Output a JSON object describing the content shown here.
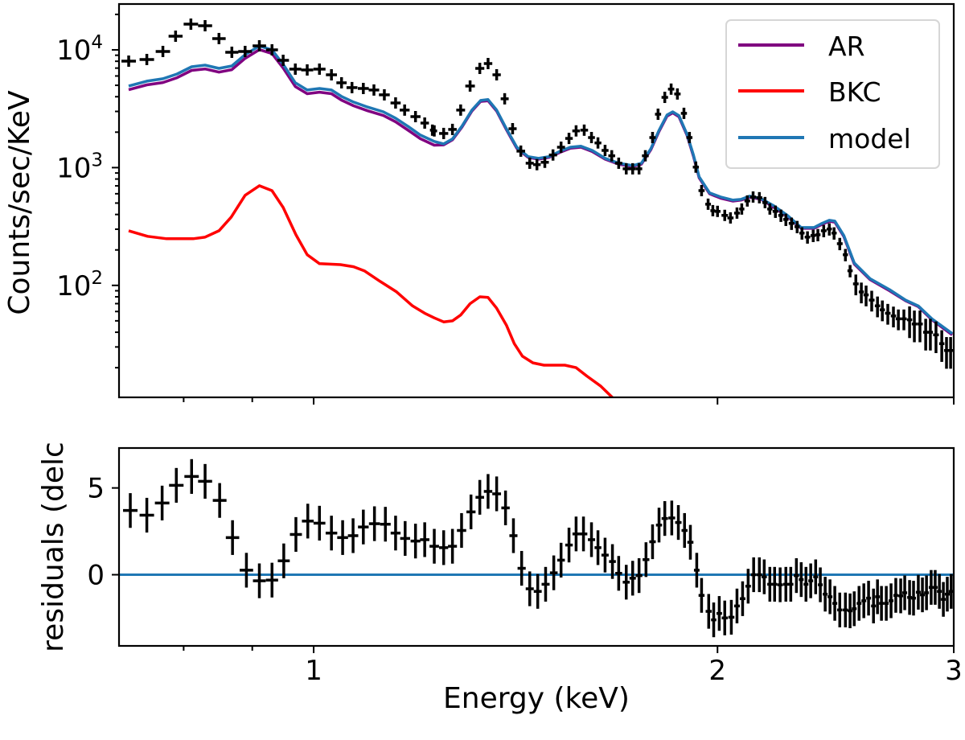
{
  "chart_data": [
    {
      "type": "line",
      "panel": "spectrum",
      "xlabel": "",
      "ylabel": "Counts/sec/KeV",
      "xscale": "log",
      "yscale": "log",
      "xlim": [
        0.716,
        3.0
      ],
      "ylim": [
        11.2,
        24500
      ],
      "yticks": [
        {
          "value": 10000,
          "base": "10",
          "exp": "4"
        },
        {
          "value": 1000,
          "base": "10",
          "exp": "3"
        },
        {
          "value": 100,
          "base": "10",
          "exp": "2"
        }
      ],
      "xticks_major": [
        1,
        2,
        3
      ],
      "xticks_minor": [
        0.8,
        0.9
      ],
      "legend": {
        "placement": "top-right",
        "entries": [
          {
            "label": "AR",
            "color": "#800080"
          },
          {
            "label": "BKC",
            "color": "#ff0000"
          },
          {
            "label": "model",
            "color": "#1f77b4"
          }
        ]
      },
      "data_points": {
        "color": "#000000",
        "x": [
          0.728,
          0.751,
          0.772,
          0.789,
          0.81,
          0.83,
          0.85,
          0.869,
          0.889,
          0.911,
          0.931,
          0.949,
          0.969,
          0.989,
          1.01,
          1.031,
          1.049,
          1.068,
          1.089,
          1.109,
          1.129,
          1.151,
          1.169,
          1.191,
          1.21,
          1.226,
          1.23,
          1.25,
          1.269,
          1.287,
          1.308,
          1.33,
          1.349,
          1.369,
          1.388,
          1.407,
          1.427,
          1.449,
          1.467,
          1.487,
          1.508,
          1.529,
          1.55,
          1.569,
          1.591,
          1.611,
          1.629,
          1.649,
          1.668,
          1.688,
          1.71,
          1.729,
          1.748,
          1.767,
          1.789,
          1.806,
          1.827,
          1.847,
          1.867,
          1.888,
          1.906,
          1.927,
          1.946,
          1.968,
          1.984,
          2.0,
          2.025,
          2.045,
          2.068,
          2.085,
          2.105,
          2.126,
          2.149,
          2.17,
          2.188,
          2.209,
          2.23,
          2.249,
          2.271,
          2.293,
          2.312,
          2.334,
          2.357,
          2.376,
          2.4,
          2.423,
          2.443,
          2.467,
          2.491,
          2.511,
          2.536,
          2.56,
          2.581,
          2.606,
          2.632,
          2.654,
          2.679,
          2.705,
          2.728,
          2.754,
          2.781,
          2.804,
          2.831,
          2.859,
          2.882,
          2.91,
          2.939,
          2.963,
          2.984
        ],
        "y": [
          8020,
          8280,
          9690,
          13060,
          16530,
          16030,
          12470,
          9540,
          9690,
          10820,
          10000,
          8150,
          6860,
          6750,
          6860,
          6140,
          5250,
          4780,
          4700,
          4560,
          4150,
          3540,
          3080,
          2710,
          2390,
          2080,
          2050,
          1950,
          2110,
          3080,
          4930,
          6960,
          7650,
          6140,
          3840,
          2140,
          1380,
          1090,
          1060,
          1110,
          1280,
          1490,
          1770,
          2050,
          2080,
          1800,
          1620,
          1400,
          1260,
          1090,
          977,
          977,
          977,
          1260,
          1800,
          2840,
          3950,
          4640,
          4220,
          2890,
          1800,
          1010,
          638,
          489,
          431,
          425,
          393,
          374,
          411,
          445,
          521,
          563,
          555,
          505,
          445,
          425,
          393,
          363,
          336,
          315,
          278,
          257,
          265,
          269,
          291,
          301,
          278,
          226,
          182,
          133,
          103,
          88,
          83,
          75,
          67,
          62,
          58,
          55,
          52,
          52,
          51,
          47,
          47,
          40,
          40,
          38,
          32,
          28,
          28
        ],
        "yerr_frac": [
          0.03,
          0.03,
          0.03,
          0.03,
          0.03,
          0.03,
          0.03,
          0.03,
          0.03,
          0.03,
          0.03,
          0.03,
          0.03,
          0.03,
          0.03,
          0.03,
          0.03,
          0.03,
          0.03,
          0.03,
          0.03,
          0.03,
          0.03,
          0.03,
          0.03,
          0.03,
          0.05,
          0.05,
          0.05,
          0.05,
          0.05,
          0.05,
          0.05,
          0.05,
          0.05,
          0.05,
          0.05,
          0.05,
          0.05,
          0.05,
          0.05,
          0.05,
          0.05,
          0.05,
          0.05,
          0.05,
          0.05,
          0.05,
          0.05,
          0.05,
          0.05,
          0.05,
          0.05,
          0.05,
          0.05,
          0.05,
          0.05,
          0.05,
          0.05,
          0.05,
          0.05,
          0.05,
          0.08,
          0.08,
          0.08,
          0.08,
          0.08,
          0.08,
          0.08,
          0.08,
          0.08,
          0.08,
          0.08,
          0.08,
          0.08,
          0.12,
          0.12,
          0.12,
          0.12,
          0.12,
          0.12,
          0.12,
          0.12,
          0.12,
          0.12,
          0.12,
          0.12,
          0.12,
          0.12,
          0.12,
          0.2,
          0.2,
          0.2,
          0.2,
          0.2,
          0.2,
          0.2,
          0.2,
          0.2,
          0.2,
          0.3,
          0.3,
          0.3,
          0.3,
          0.3,
          0.3,
          0.3,
          0.3,
          0.3
        ]
      },
      "series": [
        {
          "name": "AR",
          "color": "#800080",
          "x": [
            0.728,
            0.751,
            0.772,
            0.791,
            0.811,
            0.83,
            0.85,
            0.869,
            0.889,
            0.911,
            0.931,
            0.949,
            0.969,
            0.989,
            1.01,
            1.031,
            1.049,
            1.071,
            1.097,
            1.127,
            1.151,
            1.175,
            1.201,
            1.23,
            1.25,
            1.269,
            1.29,
            1.312,
            1.332,
            1.349,
            1.369,
            1.392,
            1.417,
            1.445,
            1.471,
            1.498,
            1.527,
            1.554,
            1.582,
            1.613,
            1.649,
            1.688,
            1.729,
            1.755,
            1.784,
            1.809,
            1.834,
            1.852,
            1.872,
            1.898,
            1.919,
            1.938,
            1.973,
            2.011,
            2.054,
            2.082,
            2.114,
            2.155,
            2.203,
            2.255,
            2.309,
            2.36,
            2.393,
            2.423,
            2.446,
            2.484,
            2.529,
            2.599,
            2.687,
            2.762,
            2.823,
            2.89,
            2.992
          ],
          "y": [
            4580,
            5040,
            5280,
            5800,
            6690,
            6890,
            6470,
            6790,
            8460,
            10040,
            9300,
            7010,
            4880,
            4240,
            4370,
            4240,
            3740,
            3350,
            3040,
            2770,
            2450,
            2090,
            1760,
            1550,
            1560,
            1720,
            2210,
            3020,
            3650,
            3700,
            3020,
            2100,
            1460,
            1220,
            1180,
            1220,
            1350,
            1460,
            1490,
            1370,
            1180,
            1070,
            1020,
            1070,
            1420,
            2030,
            2740,
            2920,
            2700,
            1880,
            1250,
            820,
            600,
            550,
            520,
            530,
            560,
            540,
            460,
            385,
            305,
            305,
            330,
            350,
            345,
            260,
            152,
            112,
            90,
            74,
            66,
            51,
            38
          ]
        },
        {
          "name": "BKC",
          "color": "#ff0000",
          "x": [
            0.728,
            0.752,
            0.777,
            0.813,
            0.83,
            0.85,
            0.868,
            0.889,
            0.911,
            0.931,
            0.949,
            0.97,
            0.989,
            1.01,
            1.047,
            1.071,
            1.091,
            1.121,
            1.153,
            1.185,
            1.21,
            1.23,
            1.25,
            1.269,
            1.287,
            1.308,
            1.33,
            1.349,
            1.369,
            1.392,
            1.411,
            1.431,
            1.457,
            1.485,
            1.539,
            1.569,
            1.598,
            1.636,
            1.672
          ],
          "y": [
            291,
            261,
            249,
            249,
            257,
            291,
            380,
            582,
            702,
            638,
            459,
            269,
            182,
            153,
            150,
            144,
            133,
            108,
            88,
            67,
            58,
            53,
            49,
            50,
            56,
            70,
            80,
            79,
            64,
            46,
            32,
            25,
            22,
            21,
            21,
            20,
            17,
            14,
            11
          ]
        },
        {
          "name": "model",
          "color": "#1f77b4",
          "x": [
            0.728,
            0.751,
            0.772,
            0.791,
            0.811,
            0.83,
            0.85,
            0.869,
            0.889,
            0.911,
            0.931,
            0.949,
            0.969,
            0.989,
            1.01,
            1.031,
            1.049,
            1.071,
            1.097,
            1.127,
            1.151,
            1.175,
            1.201,
            1.23,
            1.25,
            1.269,
            1.29,
            1.312,
            1.332,
            1.349,
            1.369,
            1.392,
            1.417,
            1.445,
            1.471,
            1.498,
            1.527,
            1.554,
            1.582,
            1.613,
            1.649,
            1.688,
            1.729,
            1.755,
            1.784,
            1.809,
            1.834,
            1.852,
            1.872,
            1.898,
            1.919,
            1.938,
            1.973,
            2.011,
            2.054,
            2.082,
            2.114,
            2.155,
            2.203,
            2.255,
            2.309,
            2.36,
            2.393,
            2.423,
            2.446,
            2.484,
            2.529,
            2.599,
            2.687,
            2.762,
            2.823,
            2.89,
            2.992
          ],
          "y": [
            4930,
            5420,
            5680,
            6240,
            7190,
            7410,
            6960,
            7300,
            9100,
            10800,
            10000,
            7540,
            5250,
            4560,
            4700,
            4560,
            4020,
            3600,
            3270,
            2980,
            2630,
            2250,
            1890,
            1670,
            1590,
            1750,
            2250,
            3080,
            3720,
            3780,
            3080,
            2140,
            1490,
            1240,
            1200,
            1240,
            1380,
            1490,
            1520,
            1400,
            1200,
            1090,
            1040,
            1090,
            1450,
            2070,
            2800,
            2980,
            2760,
            1920,
            1280,
            836,
            610,
            563,
            530,
            537,
            573,
            546,
            474,
            393,
            310,
            310,
            336,
            357,
            352,
            265,
            155,
            114,
            92,
            75,
            67,
            52,
            39
          ]
        }
      ]
    },
    {
      "type": "scatter",
      "panel": "residuals",
      "xlabel": "Energy (keV)",
      "ylabel": "residuals (delc",
      "xscale": "log",
      "xlim": [
        0.716,
        3.0
      ],
      "ylim": [
        -4.1,
        7.3
      ],
      "yticks": [
        0,
        5
      ],
      "xticks_major": [
        {
          "value": 1,
          "label": "1"
        },
        {
          "value": 2,
          "label": "2"
        },
        {
          "value": 3,
          "label": "3"
        }
      ],
      "xticks_minor": [
        0.8,
        0.9
      ],
      "zero_line_color": "#1f77b4",
      "points": {
        "color": "#000000",
        "x": [
          0.73,
          0.751,
          0.771,
          0.79,
          0.811,
          0.83,
          0.851,
          0.87,
          0.891,
          0.911,
          0.931,
          0.95,
          0.97,
          0.99,
          1.01,
          1.031,
          1.051,
          1.07,
          1.089,
          1.11,
          1.131,
          1.151,
          1.17,
          1.191,
          1.21,
          1.23,
          1.25,
          1.269,
          1.289,
          1.31,
          1.33,
          1.349,
          1.369,
          1.39,
          1.409,
          1.429,
          1.449,
          1.469,
          1.489,
          1.51,
          1.529,
          1.55,
          1.569,
          1.589,
          1.611,
          1.629,
          1.649,
          1.67,
          1.688,
          1.71,
          1.729,
          1.748,
          1.769,
          1.789,
          1.809,
          1.827,
          1.849,
          1.87,
          1.89,
          1.909,
          1.93,
          1.946,
          1.97,
          1.987,
          2.006,
          2.025,
          2.048,
          2.068,
          2.088,
          2.108,
          2.128,
          2.149,
          2.167,
          2.188,
          2.206,
          2.227,
          2.249,
          2.268,
          2.29,
          2.309,
          2.328,
          2.347,
          2.367,
          2.386,
          2.406,
          2.426,
          2.446,
          2.467,
          2.491,
          2.511,
          2.529,
          2.55,
          2.571,
          2.592,
          2.614,
          2.632,
          2.65,
          2.672,
          2.694,
          2.716,
          2.739,
          2.758,
          2.781,
          2.8,
          2.823,
          2.843,
          2.863,
          2.886,
          2.906,
          2.927,
          2.947,
          2.967,
          2.987
        ],
        "y": [
          3.7,
          3.43,
          4.13,
          5.15,
          5.66,
          5.38,
          4.28,
          2.14,
          0.26,
          -0.35,
          -0.31,
          0.8,
          2.32,
          3.09,
          2.97,
          2.4,
          2.14,
          2.25,
          2.75,
          2.94,
          2.91,
          2.4,
          2.09,
          1.94,
          2.02,
          1.64,
          1.56,
          1.64,
          2.55,
          3.62,
          4.46,
          4.8,
          4.66,
          3.85,
          2.25,
          0.37,
          -0.81,
          -0.96,
          -0.55,
          0.11,
          0.84,
          1.71,
          2.35,
          2.35,
          2.02,
          1.56,
          1.13,
          0.76,
          0.08,
          -0.43,
          -0.2,
          -0.05,
          0.87,
          1.9,
          2.86,
          3.24,
          3.27,
          3.01,
          2.55,
          1.87,
          0.26,
          -1.19,
          -2.11,
          -2.6,
          -2.23,
          -2.49,
          -2.45,
          -1.8,
          -1.38,
          -0.66,
          0.0,
          0.0,
          -0.12,
          -0.55,
          -0.55,
          -0.58,
          -0.55,
          -0.55,
          -0.05,
          -0.28,
          -0.55,
          -0.35,
          -0.12,
          -0.58,
          -1.12,
          -1.27,
          -1.65,
          -2.03,
          -2.03,
          -2.08,
          -1.96,
          -1.65,
          -1.5,
          -1.35,
          -1.8,
          -1.27,
          -1.65,
          -1.65,
          -1.5,
          -1.19,
          -1.22,
          -1.04,
          -1.31,
          -1.35,
          -1.01,
          -1.16,
          -1.04,
          -0.73,
          -0.73,
          -0.96,
          -1.42,
          -1.12,
          -0.96
        ],
        "yerr": 1.0
      }
    }
  ]
}
